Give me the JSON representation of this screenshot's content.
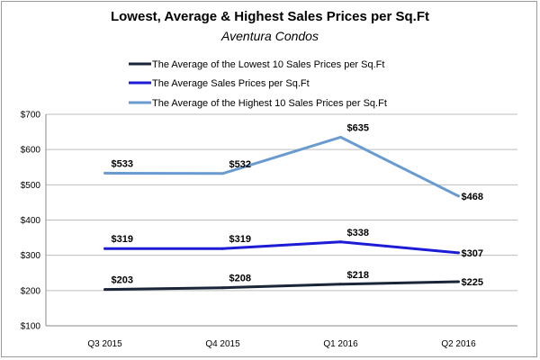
{
  "chart_data": {
    "type": "line",
    "title": "Lowest, Average & Highest Sales Prices per Sq.Ft",
    "subtitle": "Aventura Condos",
    "categories": [
      "Q3 2015",
      "Q4 2015",
      "Q1 2016",
      "Q2 2016"
    ],
    "ylim": [
      100,
      700
    ],
    "y_ticks": [
      "$100",
      "$200",
      "$300",
      "$400",
      "$500",
      "$600",
      "$700"
    ],
    "grid": true,
    "legend_position": "top",
    "series": [
      {
        "name": "The Average of the Lowest 10 Sales Prices per Sq.Ft",
        "color": "#1a2538",
        "values": [
          203,
          208,
          218,
          225
        ],
        "labels": [
          "$203",
          "$208",
          "$218",
          "$225"
        ]
      },
      {
        "name": "The Average Sales Prices per Sq.Ft",
        "color": "#1c1cd6",
        "values": [
          319,
          319,
          338,
          307
        ],
        "labels": [
          "$319",
          "$319",
          "$338",
          "$307"
        ]
      },
      {
        "name": "The Average of the Highest 10 Sales Prices per Sq.Ft",
        "color": "#6a9bd0",
        "values": [
          533,
          532,
          635,
          468
        ],
        "labels": [
          "$533",
          "$532",
          "$635",
          "$468"
        ]
      }
    ]
  }
}
